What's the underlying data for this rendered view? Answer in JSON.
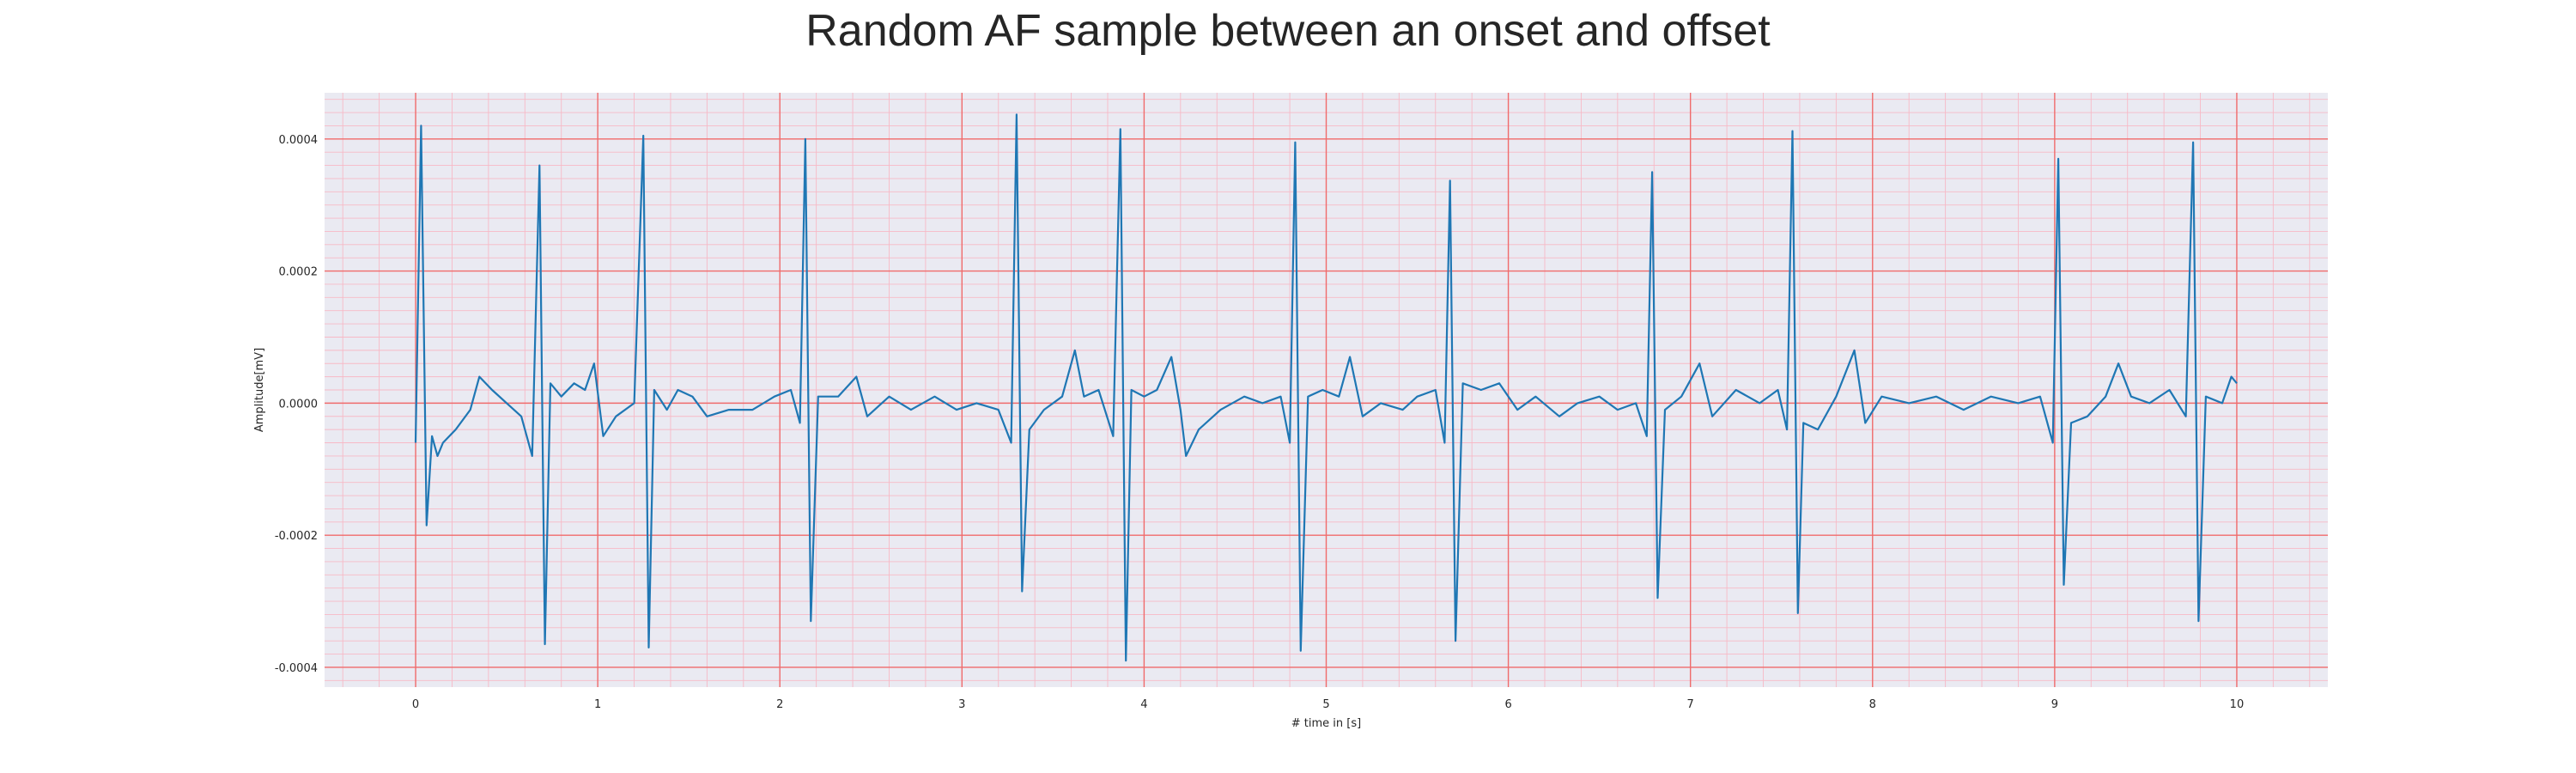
{
  "chart_data": {
    "type": "line",
    "title": "Random AF sample between an onset and offset",
    "xlabel": "# time in [s]",
    "ylabel": "Amplitude[mV]",
    "xlim": [
      -0.5,
      10.5
    ],
    "ylim": [
      -0.00043,
      0.00047
    ],
    "x_ticks": [
      0,
      1,
      2,
      3,
      4,
      5,
      6,
      7,
      8,
      9,
      10
    ],
    "y_ticks": [
      -0.0004,
      -0.0002,
      0.0,
      0.0002,
      0.0004
    ],
    "x_tick_labels": [
      "0",
      "1",
      "2",
      "3",
      "4",
      "5",
      "6",
      "7",
      "8",
      "9",
      "10"
    ],
    "y_tick_labels": [
      "-0.0004",
      "-0.0002",
      "0.0000",
      "0.0002",
      "0.0004"
    ],
    "grid": true,
    "minor_grid": true,
    "series": [
      {
        "color": "#1f77b4",
        "r_peaks": [
          0.03,
          0.68,
          1.25,
          2.14,
          3.3,
          3.87,
          4.83,
          5.68,
          6.79,
          7.56,
          9.02,
          9.76
        ],
        "peak_values": [
          0.00042,
          0.00036,
          0.000405,
          0.0004,
          0.000437,
          0.000415,
          0.000395,
          0.000337,
          0.00035,
          0.000412,
          0.00037,
          0.000395
        ],
        "trough_values": [
          -0.000185,
          -0.000365,
          -0.00037,
          -0.00033,
          -0.000285,
          -0.00039,
          -0.000375,
          -0.00036,
          -0.000295,
          -0.000318,
          -0.000275,
          -0.00033
        ],
        "points": [
          [
            0.0,
            -6e-05
          ],
          [
            0.03,
            0.00042
          ],
          [
            0.06,
            -0.000185
          ],
          [
            0.09,
            -5e-05
          ],
          [
            0.12,
            -8e-05
          ],
          [
            0.15,
            -6e-05
          ],
          [
            0.22,
            -4e-05
          ],
          [
            0.3,
            -1e-05
          ],
          [
            0.35,
            4e-05
          ],
          [
            0.42,
            2e-05
          ],
          [
            0.5,
            0.0
          ],
          [
            0.58,
            -2e-05
          ],
          [
            0.64,
            -8e-05
          ],
          [
            0.68,
            0.00036
          ],
          [
            0.71,
            -0.000365
          ],
          [
            0.74,
            3e-05
          ],
          [
            0.8,
            1e-05
          ],
          [
            0.87,
            3e-05
          ],
          [
            0.93,
            2e-05
          ],
          [
            0.98,
            6e-05
          ],
          [
            1.03,
            -5e-05
          ],
          [
            1.1,
            -2e-05
          ],
          [
            1.2,
            0.0
          ],
          [
            1.25,
            0.000405
          ],
          [
            1.28,
            -0.00037
          ],
          [
            1.31,
            2e-05
          ],
          [
            1.38,
            -1e-05
          ],
          [
            1.44,
            2e-05
          ],
          [
            1.52,
            1e-05
          ],
          [
            1.6,
            -2e-05
          ],
          [
            1.72,
            -1e-05
          ],
          [
            1.85,
            -1e-05
          ],
          [
            1.97,
            1e-05
          ],
          [
            2.06,
            2e-05
          ],
          [
            2.11,
            -3e-05
          ],
          [
            2.14,
            0.0004
          ],
          [
            2.17,
            -0.00033
          ],
          [
            2.21,
            1e-05
          ],
          [
            2.32,
            1e-05
          ],
          [
            2.42,
            4e-05
          ],
          [
            2.48,
            -2e-05
          ],
          [
            2.6,
            1e-05
          ],
          [
            2.72,
            -1e-05
          ],
          [
            2.85,
            1e-05
          ],
          [
            2.97,
            -1e-05
          ],
          [
            3.08,
            0.0
          ],
          [
            3.2,
            -1e-05
          ],
          [
            3.27,
            -6e-05
          ],
          [
            3.3,
            0.000437
          ],
          [
            3.33,
            -0.000285
          ],
          [
            3.37,
            -4e-05
          ],
          [
            3.45,
            -1e-05
          ],
          [
            3.55,
            1e-05
          ],
          [
            3.62,
            8e-05
          ],
          [
            3.67,
            1e-05
          ],
          [
            3.75,
            2e-05
          ],
          [
            3.83,
            -5e-05
          ],
          [
            3.87,
            0.000415
          ],
          [
            3.9,
            -0.00039
          ],
          [
            3.93,
            2e-05
          ],
          [
            4.0,
            1e-05
          ],
          [
            4.07,
            2e-05
          ],
          [
            4.15,
            7e-05
          ],
          [
            4.2,
            -1e-05
          ],
          [
            4.23,
            -8e-05
          ],
          [
            4.3,
            -4e-05
          ],
          [
            4.42,
            -1e-05
          ],
          [
            4.55,
            1e-05
          ],
          [
            4.65,
            0.0
          ],
          [
            4.75,
            1e-05
          ],
          [
            4.8,
            -6e-05
          ],
          [
            4.83,
            0.000395
          ],
          [
            4.86,
            -0.000375
          ],
          [
            4.9,
            1e-05
          ],
          [
            4.98,
            2e-05
          ],
          [
            5.07,
            1e-05
          ],
          [
            5.13,
            7e-05
          ],
          [
            5.2,
            -2e-05
          ],
          [
            5.3,
            0.0
          ],
          [
            5.42,
            -1e-05
          ],
          [
            5.5,
            1e-05
          ],
          [
            5.6,
            2e-05
          ],
          [
            5.65,
            -6e-05
          ],
          [
            5.68,
            0.000337
          ],
          [
            5.71,
            -0.00036
          ],
          [
            5.75,
            3e-05
          ],
          [
            5.85,
            2e-05
          ],
          [
            5.95,
            3e-05
          ],
          [
            6.05,
            -1e-05
          ],
          [
            6.15,
            1e-05
          ],
          [
            6.28,
            -2e-05
          ],
          [
            6.38,
            0.0
          ],
          [
            6.5,
            1e-05
          ],
          [
            6.6,
            -1e-05
          ],
          [
            6.7,
            0.0
          ],
          [
            6.76,
            -5e-05
          ],
          [
            6.79,
            0.00035
          ],
          [
            6.82,
            -0.000295
          ],
          [
            6.86,
            -1e-05
          ],
          [
            6.95,
            1e-05
          ],
          [
            7.05,
            6e-05
          ],
          [
            7.12,
            -2e-05
          ],
          [
            7.25,
            2e-05
          ],
          [
            7.38,
            0.0
          ],
          [
            7.48,
            2e-05
          ],
          [
            7.53,
            -4e-05
          ],
          [
            7.56,
            0.000412
          ],
          [
            7.59,
            -0.000318
          ],
          [
            7.62,
            -3e-05
          ],
          [
            7.7,
            -4e-05
          ],
          [
            7.8,
            1e-05
          ],
          [
            7.9,
            8e-05
          ],
          [
            7.96,
            -3e-05
          ],
          [
            8.05,
            1e-05
          ],
          [
            8.2,
            0.0
          ],
          [
            8.35,
            1e-05
          ],
          [
            8.5,
            -1e-05
          ],
          [
            8.65,
            1e-05
          ],
          [
            8.8,
            0.0
          ],
          [
            8.92,
            1e-05
          ],
          [
            8.99,
            -6e-05
          ],
          [
            9.02,
            0.00037
          ],
          [
            9.05,
            -0.000275
          ],
          [
            9.09,
            -3e-05
          ],
          [
            9.18,
            -2e-05
          ],
          [
            9.28,
            1e-05
          ],
          [
            9.35,
            6e-05
          ],
          [
            9.42,
            1e-05
          ],
          [
            9.52,
            0.0
          ],
          [
            9.63,
            2e-05
          ],
          [
            9.72,
            -2e-05
          ],
          [
            9.76,
            0.000395
          ],
          [
            9.79,
            -0.00033
          ],
          [
            9.83,
            1e-05
          ],
          [
            9.92,
            0.0
          ],
          [
            9.97,
            4e-05
          ],
          [
            10.0,
            3e-05
          ]
        ]
      }
    ]
  }
}
